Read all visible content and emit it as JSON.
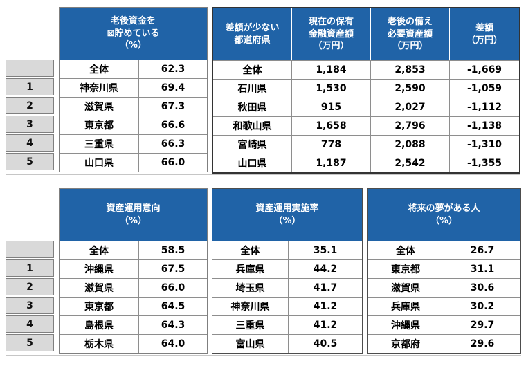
{
  "colors": {
    "header_bg": "#2063A7",
    "header_text": "#FFFFFF",
    "rank_cell_bg": "#D9D9D9",
    "grid_line": "#8E8E8E",
    "dark_outline": "#333333",
    "page_bg": "#FFFFFF"
  },
  "ranks": [
    "",
    "1",
    "2",
    "3",
    "4",
    "5"
  ],
  "table1": {
    "block1": {
      "header": "老後資金を\n⊠貯めている\n（%）",
      "rows": [
        [
          "全体",
          "62.3"
        ],
        [
          "神奈川県",
          "69.4"
        ],
        [
          "滋賀県",
          "67.3"
        ],
        [
          "東京都",
          "66.6"
        ],
        [
          "三重県",
          "66.3"
        ],
        [
          "山口県",
          "66.0"
        ]
      ]
    },
    "block2": {
      "headers": [
        "差額が少ない\n都道府県",
        "現在の保有\n金融資産額\n（万円）",
        "老後の備え\n必要資産額\n（万円）",
        "差額\n（万円）"
      ],
      "rows": [
        [
          "全体",
          "1,184",
          "2,853",
          "-1,669"
        ],
        [
          "石川県",
          "1,530",
          "2,590",
          "-1,059"
        ],
        [
          "秋田県",
          "915",
          "2,027",
          "-1,112"
        ],
        [
          "和歌山県",
          "1,658",
          "2,796",
          "-1,138"
        ],
        [
          "宮崎県",
          "778",
          "2,088",
          "-1,310"
        ],
        [
          "山口県",
          "1,187",
          "2,542",
          "-1,355"
        ]
      ]
    }
  },
  "table2": {
    "block1": {
      "header": "資産運用意向\n（%）",
      "rows": [
        [
          "全体",
          "58.5"
        ],
        [
          "沖縄県",
          "67.5"
        ],
        [
          "滋賀県",
          "66.0"
        ],
        [
          "東京都",
          "64.5"
        ],
        [
          "島根県",
          "64.3"
        ],
        [
          "栃木県",
          "64.0"
        ]
      ]
    },
    "block2": {
      "header": "資産運用実施率\n（%）",
      "rows": [
        [
          "全体",
          "35.1"
        ],
        [
          "兵庫県",
          "44.2"
        ],
        [
          "埼玉県",
          "41.7"
        ],
        [
          "神奈川県",
          "41.2"
        ],
        [
          "三重県",
          "41.2"
        ],
        [
          "富山県",
          "40.5"
        ]
      ]
    },
    "block3": {
      "header": "将来の夢がある人\n（%）",
      "rows": [
        [
          "全体",
          "26.7"
        ],
        [
          "東京都",
          "31.1"
        ],
        [
          "滋賀県",
          "30.6"
        ],
        [
          "兵庫県",
          "30.2"
        ],
        [
          "沖縄県",
          "29.7"
        ],
        [
          "京都府",
          "29.6"
        ]
      ]
    }
  }
}
